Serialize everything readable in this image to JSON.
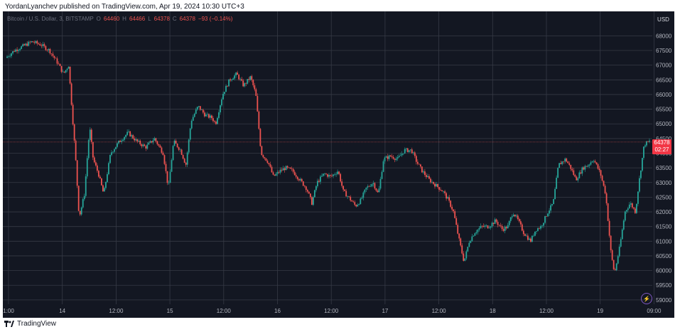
{
  "header": {
    "publisher_text": "YordanLyanchev published on TradingView.com, Apr 19, 2024 10:30 UTC+3"
  },
  "legend": {
    "symbol": "Bitcoin / U.S. Dollar, 3, BITSTAMP",
    "open_label": "O",
    "open": "64460",
    "high_label": "H",
    "high": "64466",
    "low_label": "L",
    "low": "64378",
    "close_label": "C",
    "close": "64378",
    "change": "−93 (−0.14%)"
  },
  "price_axis": {
    "currency": "USD",
    "ticks": [
      "68000",
      "67500",
      "67000",
      "66500",
      "66000",
      "65500",
      "65000",
      "64500",
      "64000",
      "63500",
      "63000",
      "62500",
      "62000",
      "61500",
      "61000",
      "60500",
      "60000",
      "59500",
      "59000"
    ]
  },
  "time_axis": {
    "ticks": [
      "1:00",
      "14",
      "12:00",
      "15",
      "12:00",
      "16",
      "12:00",
      "17",
      "12:00",
      "18",
      "12:00",
      "19",
      "09:00"
    ]
  },
  "last_price": {
    "price": "64378",
    "countdown": "02:27"
  },
  "footer": {
    "brand": "TradingView"
  },
  "colors": {
    "background": "#131722",
    "up": "#26a69a",
    "down": "#ef5350",
    "grid": "#434651"
  },
  "chart_data": {
    "type": "candlestick",
    "ylim": [
      58900,
      68300
    ],
    "x_ticks": [
      "1:00",
      "14",
      "12:00",
      "15",
      "12:00",
      "16",
      "12:00",
      "17",
      "12:00",
      "18",
      "12:00",
      "19",
      "09:00"
    ],
    "close_path": [
      [
        0,
        67250
      ],
      [
        0.5,
        67500
      ],
      [
        1,
        67650
      ],
      [
        1.5,
        67800
      ],
      [
        2,
        67700
      ],
      [
        2.5,
        67500
      ],
      [
        3,
        67050
      ],
      [
        3.3,
        66700
      ],
      [
        3.6,
        67000
      ],
      [
        4,
        63800
      ],
      [
        4.2,
        61800
      ],
      [
        4.5,
        62600
      ],
      [
        4.8,
        64900
      ],
      [
        5,
        63800
      ],
      [
        5.3,
        63300
      ],
      [
        5.6,
        62600
      ],
      [
        6,
        64000
      ],
      [
        6.5,
        64400
      ],
      [
        7,
        64700
      ],
      [
        7.5,
        64400
      ],
      [
        8,
        64200
      ],
      [
        8.5,
        64500
      ],
      [
        9,
        64000
      ],
      [
        9.3,
        62800
      ],
      [
        9.6,
        64400
      ],
      [
        10,
        64100
      ],
      [
        10.3,
        63600
      ],
      [
        10.6,
        65100
      ],
      [
        11,
        65600
      ],
      [
        11.4,
        65300
      ],
      [
        11.8,
        65200
      ],
      [
        12,
        65000
      ],
      [
        12.4,
        66000
      ],
      [
        12.8,
        66500
      ],
      [
        13.2,
        66700
      ],
      [
        13.6,
        66300
      ],
      [
        14,
        66600
      ],
      [
        14.3,
        66000
      ],
      [
        14.6,
        64000
      ],
      [
        15,
        63700
      ],
      [
        15.3,
        63200
      ],
      [
        15.7,
        63400
      ],
      [
        16,
        63500
      ],
      [
        16.4,
        63400
      ],
      [
        16.8,
        63100
      ],
      [
        17.2,
        62800
      ],
      [
        17.5,
        62300
      ],
      [
        17.8,
        63000
      ],
      [
        18.2,
        63300
      ],
      [
        18.6,
        63200
      ],
      [
        19,
        63400
      ],
      [
        19.3,
        62700
      ],
      [
        19.6,
        62500
      ],
      [
        20,
        62200
      ],
      [
        20.3,
        62400
      ],
      [
        20.6,
        62800
      ],
      [
        21,
        63000
      ],
      [
        21.3,
        62600
      ],
      [
        21.6,
        63800
      ],
      [
        22,
        63900
      ],
      [
        22.4,
        63800
      ],
      [
        22.8,
        64100
      ],
      [
        23.2,
        64100
      ],
      [
        23.5,
        63700
      ],
      [
        23.8,
        63400
      ],
      [
        24.2,
        63100
      ],
      [
        24.6,
        62900
      ],
      [
        25,
        62700
      ],
      [
        25.3,
        62400
      ],
      [
        25.6,
        62000
      ],
      [
        25.9,
        61100
      ],
      [
        26.2,
        60300
      ],
      [
        26.5,
        61000
      ],
      [
        26.8,
        61300
      ],
      [
        27.2,
        61500
      ],
      [
        27.6,
        61500
      ],
      [
        28,
        61700
      ],
      [
        28.4,
        61400
      ],
      [
        28.7,
        61500
      ],
      [
        29,
        62000
      ],
      [
        29.3,
        61700
      ],
      [
        29.6,
        61300
      ],
      [
        30,
        61000
      ],
      [
        30.3,
        61400
      ],
      [
        30.6,
        61500
      ],
      [
        31,
        62000
      ],
      [
        31.3,
        62300
      ],
      [
        31.6,
        63600
      ],
      [
        32,
        63800
      ],
      [
        32.3,
        63500
      ],
      [
        32.6,
        63100
      ],
      [
        33,
        63500
      ],
      [
        33.3,
        63600
      ],
      [
        33.6,
        63800
      ],
      [
        34,
        63300
      ],
      [
        34.3,
        62600
      ],
      [
        34.6,
        60600
      ],
      [
        34.8,
        59900
      ],
      [
        35.1,
        60800
      ],
      [
        35.4,
        62000
      ],
      [
        35.7,
        62300
      ],
      [
        36,
        62000
      ],
      [
        36.2,
        63000
      ],
      [
        36.5,
        64300
      ],
      [
        36.8,
        64400
      ]
    ]
  }
}
